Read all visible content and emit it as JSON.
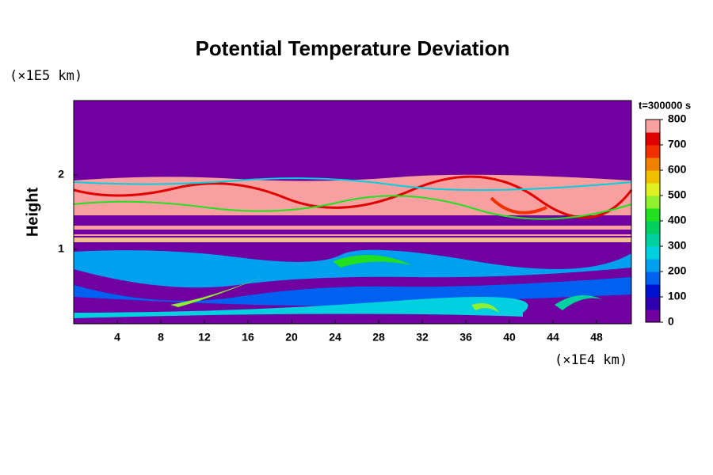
{
  "chart_data": {
    "type": "heatmap",
    "title": "Potential Temperature Deviation",
    "y_unit": "(×1E5 km)",
    "x_unit": "(×1E4 km)",
    "ylabel": "Height",
    "colorbar_label": "t=300000 s",
    "xlim": [
      0,
      51.2
    ],
    "xticks": [
      4,
      8,
      12,
      16,
      20,
      24,
      28,
      32,
      36,
      40,
      44,
      48
    ],
    "ylim": [
      0,
      3
    ],
    "yticks": [
      1,
      2
    ],
    "colorbar_lim": [
      0,
      800
    ],
    "colorbar_ticks": [
      0,
      100,
      200,
      300,
      400,
      500,
      600,
      700,
      800
    ],
    "colors": [
      "#7000a0",
      "#3000b0",
      "#0010d0",
      "#0060f0",
      "#00a0f0",
      "#00d0e0",
      "#00d0a0",
      "#00d060",
      "#20e020",
      "#90f030",
      "#e0f020",
      "#f0c000",
      "#f08000",
      "#f03000",
      "#e00000",
      "#f8a0a0"
    ]
  }
}
